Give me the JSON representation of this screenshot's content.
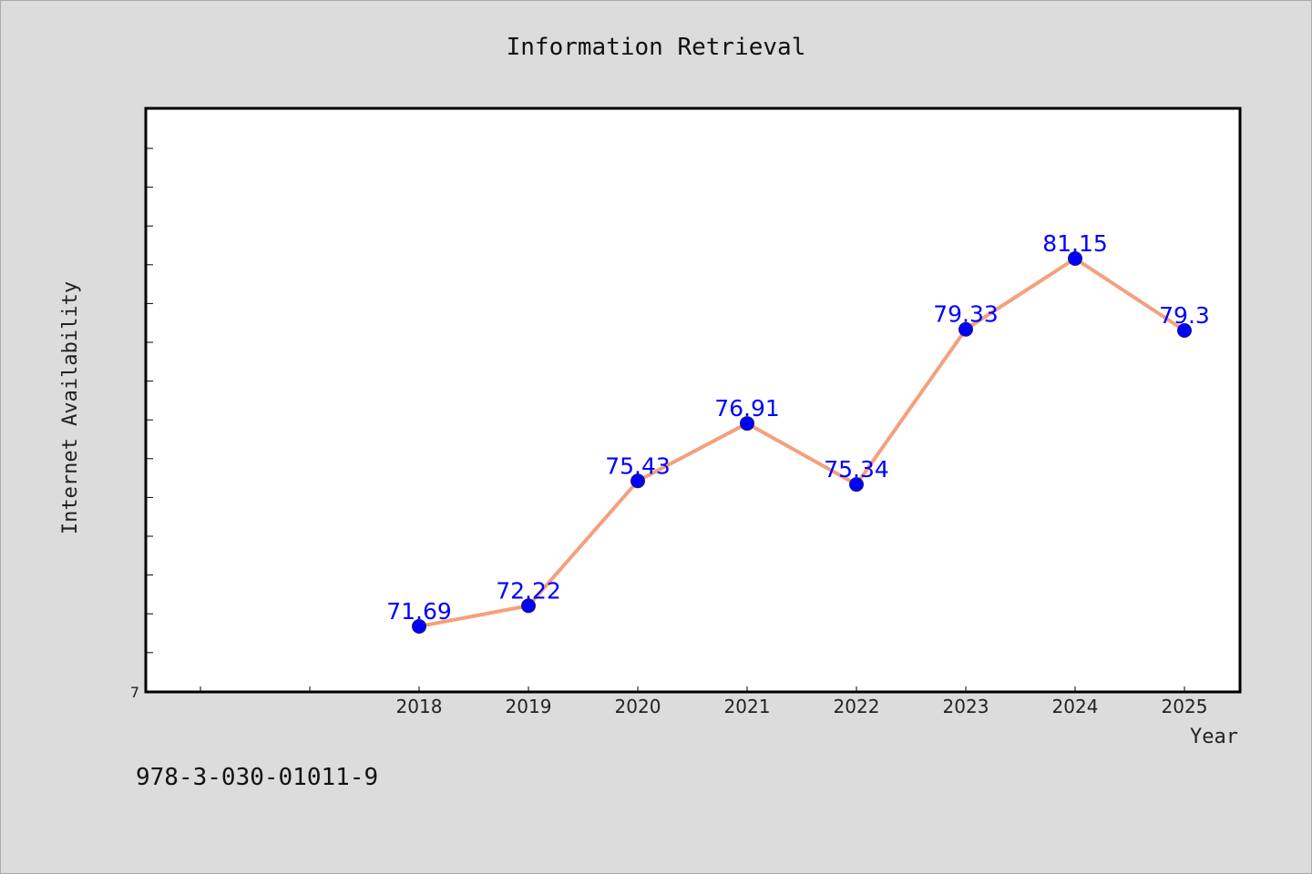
{
  "chart_data": {
    "type": "line",
    "title": "Information Retrieval",
    "xlabel": "Year",
    "ylabel": "Internet Availability",
    "y_tick_labels": [
      "7"
    ],
    "categories": [
      "2018",
      "2019",
      "2020",
      "2021",
      "2022",
      "2023",
      "2024",
      "2025"
    ],
    "series": [
      {
        "values": [
          71.69,
          72.22,
          75.43,
          76.91,
          75.34,
          79.33,
          81.15,
          79.3
        ],
        "labels": [
          "71.69",
          "72.22",
          "75.43",
          "76.91",
          "75.34",
          "79.33",
          "81.15",
          "79.3"
        ]
      }
    ],
    "line_color": "#f4a07e",
    "marker_color": "#0000ff",
    "label_color": "#0000ff",
    "grid": false
  },
  "footer": {
    "isbn": "978-3-030-01011-9"
  }
}
